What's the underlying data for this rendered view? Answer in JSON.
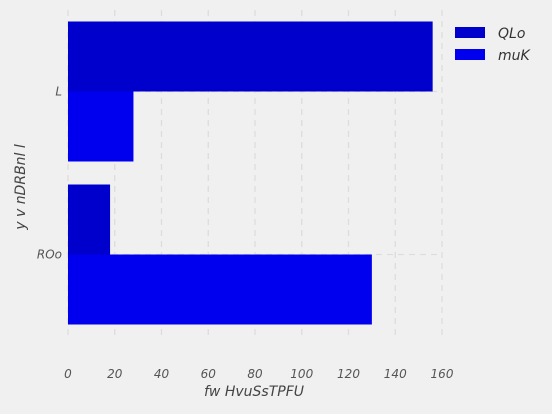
{
  "chart_data": {
    "type": "bar",
    "orientation": "horizontal",
    "categories": [
      "ROo",
      "L"
    ],
    "series": [
      {
        "name": "QLo",
        "values": [
          18,
          156
        ],
        "color": "#0000cc"
      },
      {
        "name": "muK",
        "values": [
          130,
          28
        ],
        "color": "#0000ee"
      }
    ],
    "xlabel": "fw HvuSsTPFU",
    "ylabel": "y v   nDRBnl l",
    "xlim": [
      0,
      160
    ],
    "xticks": [
      "0",
      "20",
      "40",
      "60",
      "80",
      "100",
      "120",
      "140",
      "160"
    ],
    "grid": true,
    "legend_position": "top-right"
  }
}
